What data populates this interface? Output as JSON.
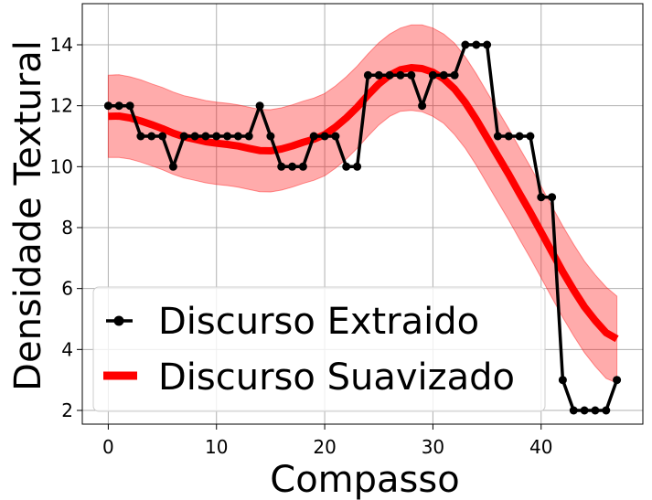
{
  "chart_data": {
    "type": "line",
    "xlabel": "Compasso",
    "ylabel": "Densidade Textural",
    "xlim": [
      -2.4,
      49.4
    ],
    "ylim": [
      1.55,
      15.35
    ],
    "xticks": [
      0,
      10,
      20,
      30,
      40
    ],
    "yticks": [
      2,
      4,
      6,
      8,
      10,
      12,
      14
    ],
    "grid": true,
    "legend_position": "lower-left",
    "series": [
      {
        "name": "Discurso Extraido",
        "color": "#000000",
        "marker": "circle",
        "x": [
          0,
          1,
          2,
          3,
          4,
          5,
          6,
          7,
          8,
          9,
          10,
          11,
          12,
          13,
          14,
          15,
          16,
          17,
          18,
          19,
          20,
          21,
          22,
          23,
          24,
          25,
          26,
          27,
          28,
          29,
          30,
          31,
          32,
          33,
          34,
          35,
          36,
          37,
          38,
          39,
          40,
          41,
          42,
          43,
          44,
          45,
          46,
          47
        ],
        "y": [
          12,
          12,
          12,
          11,
          11,
          11,
          10,
          11,
          11,
          11,
          11,
          11,
          11,
          11,
          12,
          11,
          10,
          10,
          10,
          11,
          11,
          11,
          10,
          10,
          13,
          13,
          13,
          13,
          13,
          12,
          13,
          13,
          13,
          14,
          14,
          14,
          11,
          11,
          11,
          11,
          9,
          9,
          3,
          2,
          2,
          2,
          2,
          3
        ]
      },
      {
        "name": "Discurso Suavizado",
        "color": "#ff0000",
        "x": [
          0,
          1,
          2,
          3,
          4,
          5,
          6,
          7,
          8,
          9,
          10,
          11,
          12,
          13,
          14,
          15,
          16,
          17,
          18,
          19,
          20,
          21,
          22,
          23,
          24,
          25,
          26,
          27,
          28,
          29,
          30,
          31,
          32,
          33,
          34,
          35,
          36,
          37,
          38,
          39,
          40,
          41,
          42,
          43,
          44,
          45,
          46,
          47
        ],
        "y": [
          11.65,
          11.66,
          11.6,
          11.5,
          11.38,
          11.25,
          11.1,
          10.98,
          10.9,
          10.82,
          10.77,
          10.73,
          10.68,
          10.6,
          10.53,
          10.52,
          10.58,
          10.68,
          10.8,
          10.9,
          11.05,
          11.3,
          11.6,
          11.95,
          12.35,
          12.72,
          13.0,
          13.18,
          13.25,
          13.22,
          13.1,
          12.88,
          12.55,
          12.1,
          11.55,
          10.95,
          10.35,
          9.75,
          9.12,
          8.5,
          7.85,
          7.2,
          6.55,
          5.95,
          5.4,
          4.95,
          4.55,
          4.35
        ],
        "band_upper": [
          13.0,
          13.02,
          12.95,
          12.85,
          12.72,
          12.6,
          12.45,
          12.33,
          12.25,
          12.17,
          12.12,
          12.08,
          12.03,
          11.95,
          11.88,
          11.87,
          11.93,
          12.03,
          12.15,
          12.25,
          12.4,
          12.65,
          12.95,
          13.3,
          13.7,
          14.07,
          14.35,
          14.55,
          14.65,
          14.65,
          14.55,
          14.35,
          14.05,
          13.6,
          13.05,
          12.45,
          11.85,
          11.25,
          10.62,
          10.0,
          9.35,
          8.7,
          8.05,
          7.45,
          6.9,
          6.45,
          6.05,
          5.75
        ],
        "band_lower": [
          10.3,
          10.3,
          10.25,
          10.15,
          10.03,
          9.9,
          9.75,
          9.63,
          9.55,
          9.47,
          9.42,
          9.38,
          9.33,
          9.25,
          9.18,
          9.17,
          9.23,
          9.33,
          9.45,
          9.55,
          9.7,
          9.95,
          10.25,
          10.6,
          11.0,
          11.37,
          11.65,
          11.82,
          11.85,
          11.8,
          11.65,
          11.42,
          11.05,
          10.6,
          10.05,
          9.45,
          8.85,
          8.25,
          7.62,
          7.0,
          6.35,
          5.7,
          5.05,
          4.45,
          3.9,
          3.45,
          3.05,
          2.9
        ]
      }
    ]
  }
}
